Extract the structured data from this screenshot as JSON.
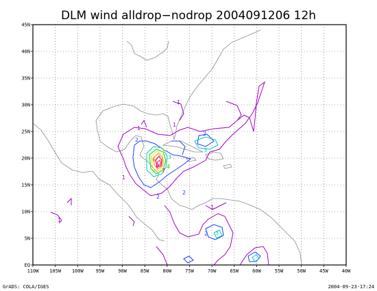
{
  "title": "DLM wind alldrop−nodrop 2004091206 12h",
  "footer": {
    "left": "GrADS: COLA/IGES",
    "right": "2004-09-23-17:24"
  },
  "axes": {
    "x_ticks": [
      "110W",
      "105W",
      "100W",
      "95W",
      "90W",
      "85W",
      "80W",
      "75W",
      "70W",
      "65W",
      "60W",
      "55W",
      "50W",
      "45W",
      "40W"
    ],
    "y_ticks": [
      "EQ",
      "5N",
      "10N",
      "15N",
      "20N",
      "25N",
      "30N",
      "35N",
      "40N",
      "45N"
    ],
    "lon_range": [
      -110,
      -40
    ],
    "lat_range": [
      0,
      45
    ]
  },
  "contour_colors": {
    "1": "#a000c8",
    "2": "#1e3cff",
    "3": "#00c8c8",
    "4": "#00dc00",
    "5": "#e6dc32",
    "6": "#f08228",
    "7": "#e60000",
    "8": "#ff00a0"
  },
  "contour_labels": [
    "1",
    "2",
    "3",
    "4",
    "5",
    "6",
    "7",
    "8"
  ]
}
